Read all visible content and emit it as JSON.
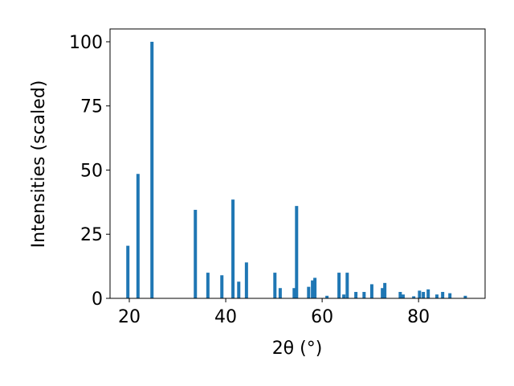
{
  "chart_data": {
    "type": "bar",
    "x_label": "2θ (°)",
    "y_label": "Intensities (scaled)",
    "x": [
      19.7,
      21.8,
      24.7,
      33.7,
      36.3,
      39.2,
      41.5,
      42.7,
      44.3,
      50.2,
      51.3,
      54.2,
      54.7,
      57.2,
      58.0,
      58.5,
      61.0,
      63.5,
      64.5,
      65.2,
      67.0,
      68.7,
      70.3,
      72.5,
      73.0,
      76.2,
      76.8,
      79.0,
      80.2,
      81.0,
      82.0,
      83.8,
      85.0,
      86.5,
      89.7
    ],
    "values": [
      20.5,
      48.5,
      100,
      34.5,
      10,
      9,
      38.5,
      6.5,
      14,
      10,
      4,
      4,
      36,
      4.5,
      7,
      8,
      1,
      10,
      1.5,
      10,
      2.5,
      2.5,
      5.5,
      4,
      6,
      2.5,
      1.5,
      0.8,
      3,
      2.5,
      3.5,
      1.5,
      2.5,
      2,
      1
    ],
    "color": "#1f77b4",
    "xlim": [
      16,
      93.8
    ],
    "ylim": [
      0,
      105
    ],
    "xticks": [
      20,
      40,
      60,
      80
    ],
    "yticks": [
      0,
      25,
      50,
      75,
      100
    ],
    "grid": false
  }
}
